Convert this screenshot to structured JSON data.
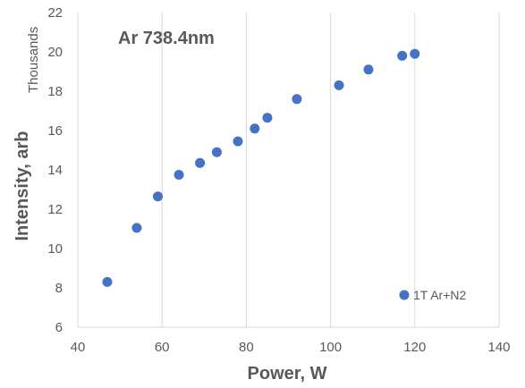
{
  "chart_data": {
    "type": "scatter",
    "title": "Ar 738.4nm",
    "xlabel": "Power, W",
    "ylabel": "Intensity, arb",
    "y_units": "Thousands",
    "xlim": [
      40,
      140
    ],
    "ylim": [
      6,
      22
    ],
    "xticks": [
      40,
      60,
      80,
      100,
      120,
      140
    ],
    "yticks": [
      6,
      8,
      10,
      12,
      14,
      16,
      18,
      20,
      22
    ],
    "grid": {
      "x": true,
      "y": false
    },
    "legend_position": "bottom-right",
    "series": [
      {
        "name": "1T Ar+N2",
        "color": "#4472c4",
        "x": [
          47,
          54,
          59,
          64,
          69,
          73,
          78,
          82,
          85,
          92,
          102,
          109,
          117,
          120
        ],
        "y": [
          8.3,
          11.05,
          12.65,
          13.75,
          14.35,
          14.9,
          15.45,
          16.1,
          16.65,
          17.6,
          18.3,
          19.1,
          19.8,
          19.9
        ]
      }
    ]
  }
}
